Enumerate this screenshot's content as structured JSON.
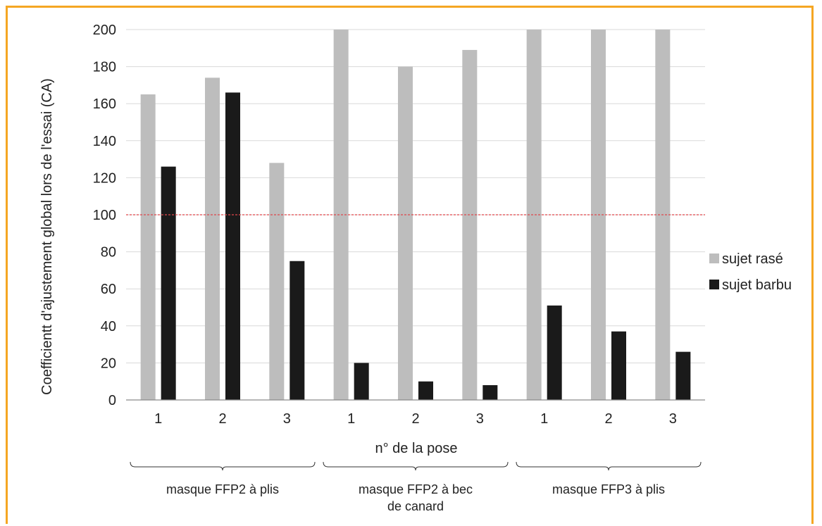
{
  "chart_data": {
    "type": "bar",
    "xlabel": "n° de la pose",
    "ylabel": "Coefficientt d'ajustement  global lors de l'essai (CA)",
    "ylim": [
      0,
      200
    ],
    "yticks": [
      0,
      20,
      40,
      60,
      80,
      100,
      120,
      140,
      160,
      180,
      200
    ],
    "grid": true,
    "legend_position": "right",
    "reference_line": {
      "value": 100,
      "color": "#e0474c",
      "style": "dashed"
    },
    "categories": [
      "1",
      "2",
      "3",
      "1",
      "2",
      "3",
      "1",
      "2",
      "3"
    ],
    "groups": [
      {
        "label": "masque FFP2 à plis",
        "categories": [
          "1",
          "2",
          "3"
        ]
      },
      {
        "label": "masque FFP2 à bec\nde canard",
        "categories": [
          "1",
          "2",
          "3"
        ]
      },
      {
        "label": "masque FFP3 à plis",
        "categories": [
          "1",
          "2",
          "3"
        ]
      }
    ],
    "series": [
      {
        "name": "sujet rasé",
        "color": "#bdbdbd",
        "values": [
          165,
          174,
          128,
          200,
          180,
          189,
          200,
          200,
          200
        ]
      },
      {
        "name": "sujet barbu",
        "color": "#1a1a1a",
        "values": [
          126,
          166,
          75,
          20,
          10,
          8,
          51,
          37,
          26
        ]
      }
    ]
  }
}
